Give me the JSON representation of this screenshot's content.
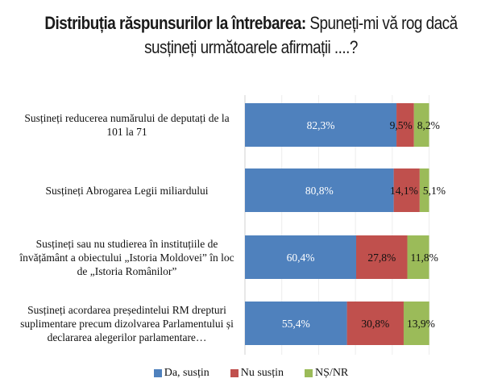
{
  "chart_data": {
    "type": "bar",
    "orientation": "horizontal",
    "stacked": true,
    "title_bold": "Distribuția răspunsurilor la întrebarea:",
    "title_rest": " Spuneți-mi vă rog dacă susțineți următoarele  afirmații ....?",
    "categories": [
      "Susțineți reducerea numărului de deputați de la 101 la 71",
      "Susțineți Abrogarea Legii miliardului",
      "Susțineți sau nu studierea în instituțiile de învățământ a obiectului „Istoria Moldovei” în loc de  „Istoria Românilor”",
      "Susțineți acordarea președintelui RM drepturi suplimentare precum dizolvarea Parlamentului și declararea alegerilor  parlamentare…"
    ],
    "series": [
      {
        "name": "Da, susțin",
        "color": "#4f81bd",
        "values": [
          82.3,
          80.8,
          60.4,
          55.4
        ],
        "labels": [
          "82,3%",
          "80,8%",
          "60,4%",
          "55,4%"
        ]
      },
      {
        "name": "Nu susțin",
        "color": "#c0504d",
        "values": [
          9.5,
          14.1,
          27.8,
          30.8
        ],
        "labels": [
          "9,5%",
          "14,1%",
          "27,8%",
          "30,8%"
        ]
      },
      {
        "name": "NȘ/NR",
        "color": "#9bbb59",
        "values": [
          8.2,
          5.1,
          11.8,
          13.9
        ],
        "labels": [
          "8,2%",
          "5,1%",
          "11,8%",
          "13,9%"
        ]
      }
    ],
    "xlim": [
      0,
      100
    ],
    "grid": true,
    "legend": "bottom"
  }
}
